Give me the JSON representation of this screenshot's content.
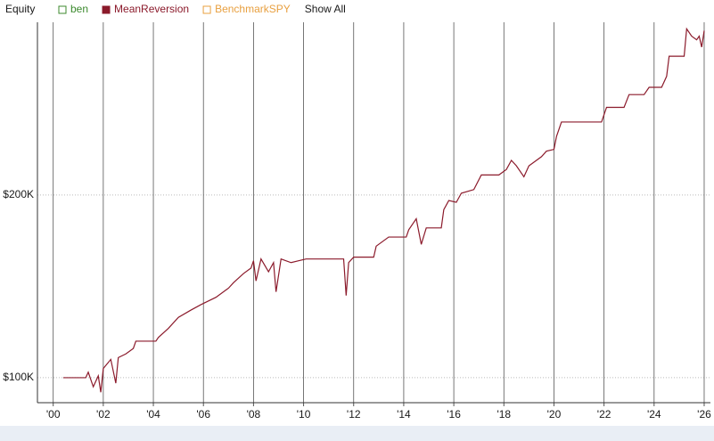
{
  "chart_data": {
    "type": "line",
    "title": "Equity",
    "button": "Show All",
    "x": [
      2000.4,
      2001.3,
      2001.4,
      2001.6,
      2001.8,
      2001.9,
      2002.0,
      2002.3,
      2002.5,
      2002.6,
      2002.9,
      2003.2,
      2003.3,
      2004.1,
      2004.2,
      2004.6,
      2005.0,
      2005.5,
      2005.9,
      2006.5,
      2007.0,
      2007.2,
      2007.6,
      2007.9,
      2008.0,
      2008.1,
      2008.3,
      2008.6,
      2008.8,
      2008.9,
      2009.1,
      2009.5,
      2009.8,
      2010.1,
      2011.6,
      2011.7,
      2011.8,
      2012.0,
      2012.8,
      2012.9,
      2013.4,
      2014.1,
      2014.2,
      2014.5,
      2014.7,
      2014.9,
      2015.5,
      2015.6,
      2015.8,
      2016.1,
      2016.3,
      2016.8,
      2017.1,
      2017.8,
      2018.1,
      2018.3,
      2018.5,
      2018.8,
      2019.0,
      2019.3,
      2019.5,
      2019.7,
      2020.0,
      2020.1,
      2020.3,
      2021.9,
      2022.1,
      2022.8,
      2023.0,
      2023.6,
      2023.8,
      2024.3,
      2024.5,
      2024.6,
      2025.2,
      2025.3,
      2025.5,
      2025.7,
      2025.8,
      2025.9,
      2026.0
    ],
    "series": [
      {
        "name": "ben",
        "color": "#3c8a2e",
        "visible": false
      },
      {
        "name": "MeanReversion",
        "color": "#8b1a2b",
        "visible": true,
        "values": [
          100000,
          100000,
          103000,
          95000,
          101000,
          92000,
          105000,
          110000,
          97000,
          111000,
          113000,
          116000,
          120000,
          120000,
          122000,
          127000,
          133000,
          137000,
          140000,
          144000,
          149000,
          152000,
          157000,
          160000,
          164000,
          153000,
          165000,
          158000,
          163000,
          147000,
          165000,
          163000,
          164000,
          165000,
          165000,
          145000,
          163000,
          166000,
          166000,
          172000,
          177000,
          177000,
          181000,
          187000,
          173000,
          182000,
          182000,
          192000,
          197000,
          196000,
          201000,
          203000,
          211000,
          211000,
          214000,
          219000,
          216000,
          210000,
          216000,
          219000,
          221000,
          224000,
          225000,
          232000,
          240000,
          240000,
          248000,
          248000,
          255000,
          255000,
          259000,
          259000,
          265000,
          276000,
          276000,
          291000,
          287000,
          285000,
          287000,
          281000,
          290000
        ]
      },
      {
        "name": "BenchmarkSPY",
        "color": "#e8a040",
        "visible": false
      }
    ],
    "xlim": [
      1999.37,
      2026.25
    ],
    "xticks": [
      {
        "value": 2000,
        "label": "'00"
      },
      {
        "value": 2002,
        "label": "'02"
      },
      {
        "value": 2004,
        "label": "'04"
      },
      {
        "value": 2006,
        "label": "'06"
      },
      {
        "value": 2008,
        "label": "'08"
      },
      {
        "value": 2010,
        "label": "'10"
      },
      {
        "value": 2012,
        "label": "'12"
      },
      {
        "value": 2014,
        "label": "'14"
      },
      {
        "value": 2016,
        "label": "'16"
      },
      {
        "value": 2018,
        "label": "'18"
      },
      {
        "value": 2020,
        "label": "'20"
      },
      {
        "value": 2022,
        "label": "'22"
      },
      {
        "value": 2024,
        "label": "'24"
      },
      {
        "value": 2026,
        "label": "'26"
      }
    ],
    "ylim": [
      86300,
      294600
    ],
    "yticks": [
      {
        "value": 100000,
        "label": "$100K"
      },
      {
        "value": 200000,
        "label": "$200K"
      }
    ],
    "grid": true
  }
}
